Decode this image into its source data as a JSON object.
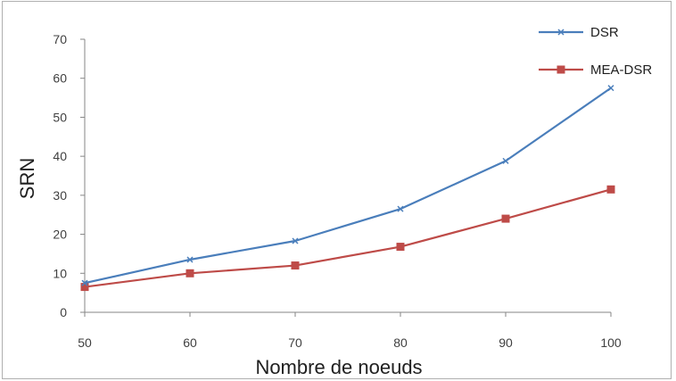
{
  "chart_data": {
    "type": "line",
    "x": [
      50,
      60,
      70,
      80,
      90,
      100
    ],
    "series": [
      {
        "name": "DSR",
        "values": [
          7.5,
          13.5,
          18.3,
          26.5,
          38.8,
          57.5
        ],
        "color": "#4a7ebb",
        "marker": "x"
      },
      {
        "name": "MEA-DSR",
        "values": [
          6.5,
          10,
          12,
          16.8,
          24,
          31.5
        ],
        "color": "#be4b48",
        "marker": "square"
      }
    ],
    "xlabel": "Nombre de noeuds",
    "ylabel": "SRN",
    "xlim": [
      50,
      100
    ],
    "ylim": [
      0,
      70
    ],
    "xticks": [
      "50",
      "60",
      "70",
      "80",
      "90",
      "100"
    ],
    "yticks": [
      "0",
      "10",
      "20",
      "30",
      "40",
      "50",
      "60",
      "70"
    ],
    "grid": false,
    "legend_position": "top-right"
  }
}
